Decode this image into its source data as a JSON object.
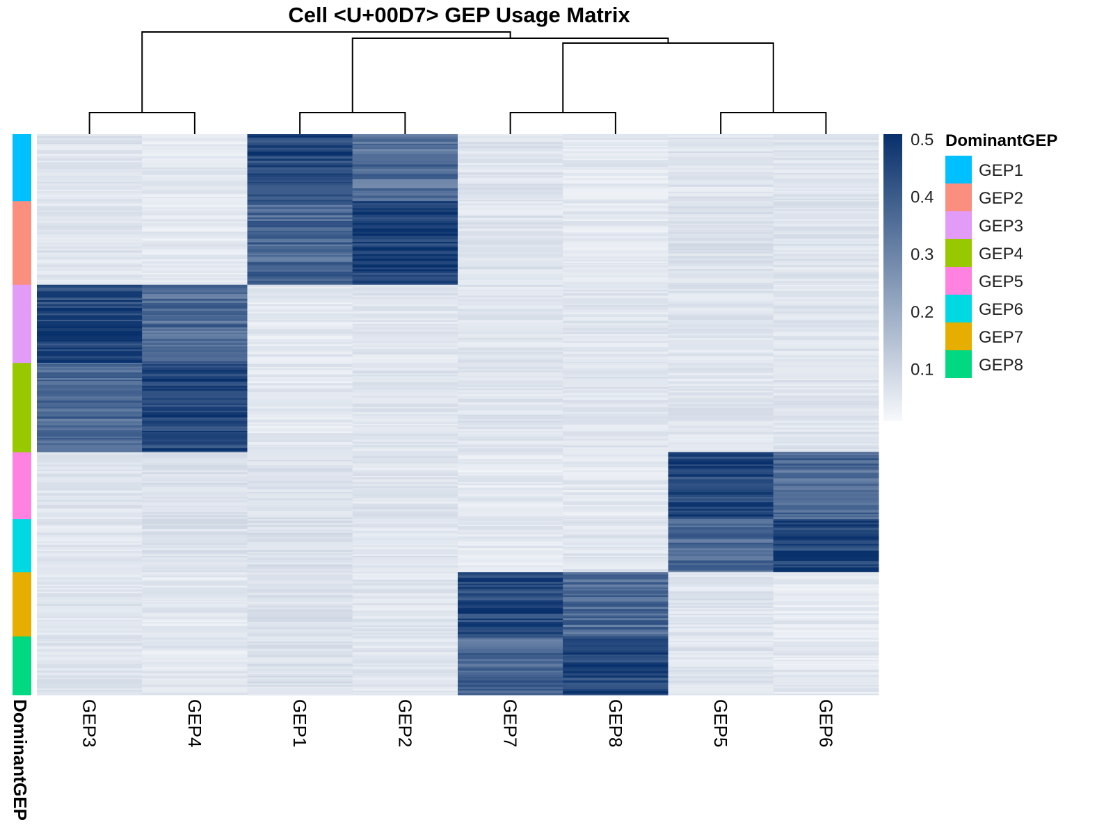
{
  "title": "Cell <U+00D7> GEP Usage Matrix",
  "annotation_label": "DominantGEP",
  "chart_data": {
    "type": "heatmap",
    "title": "Cell <U+00D7> GEP Usage Matrix",
    "columns": [
      "GEP3",
      "GEP4",
      "GEP1",
      "GEP2",
      "GEP7",
      "GEP8",
      "GEP5",
      "GEP6"
    ],
    "row_groups": [
      {
        "name": "GEP1",
        "fraction": 0.12,
        "values": [
          0.05,
          0.04,
          0.44,
          0.34,
          0.05,
          0.04,
          0.05,
          0.05
        ]
      },
      {
        "name": "GEP2",
        "fraction": 0.15,
        "values": [
          0.05,
          0.04,
          0.36,
          0.45,
          0.05,
          0.04,
          0.06,
          0.05
        ]
      },
      {
        "name": "GEP3",
        "fraction": 0.14,
        "values": [
          0.45,
          0.35,
          0.04,
          0.05,
          0.05,
          0.05,
          0.05,
          0.05
        ]
      },
      {
        "name": "GEP4",
        "fraction": 0.16,
        "values": [
          0.36,
          0.45,
          0.04,
          0.05,
          0.05,
          0.05,
          0.05,
          0.05
        ]
      },
      {
        "name": "GEP5",
        "fraction": 0.12,
        "values": [
          0.05,
          0.06,
          0.06,
          0.05,
          0.04,
          0.04,
          0.45,
          0.35
        ]
      },
      {
        "name": "GEP6",
        "fraction": 0.095,
        "values": [
          0.05,
          0.06,
          0.06,
          0.05,
          0.04,
          0.05,
          0.35,
          0.46
        ]
      },
      {
        "name": "GEP7",
        "fraction": 0.115,
        "values": [
          0.05,
          0.04,
          0.06,
          0.05,
          0.45,
          0.36,
          0.05,
          0.04
        ]
      },
      {
        "name": "GEP8",
        "fraction": 0.105,
        "values": [
          0.05,
          0.04,
          0.06,
          0.05,
          0.36,
          0.45,
          0.05,
          0.04
        ]
      }
    ],
    "color_scale": {
      "min": 0.0,
      "max": 0.5,
      "low_color": "#f7f9fc",
      "high_color": "#08306b",
      "ticks": [
        "0.5",
        "0.4",
        "0.3",
        "0.2",
        "0.1"
      ]
    },
    "column_dendrogram": true,
    "legend_position": "right"
  },
  "legend": {
    "title": "DominantGEP",
    "items": [
      {
        "label": "GEP1",
        "color": "#00c0ff"
      },
      {
        "label": "GEP2",
        "color": "#fa8f80"
      },
      {
        "label": "GEP3",
        "color": "#e39bf8"
      },
      {
        "label": "GEP4",
        "color": "#97c800"
      },
      {
        "label": "GEP5",
        "color": "#ff81e0"
      },
      {
        "label": "GEP6",
        "color": "#00d9e2"
      },
      {
        "label": "GEP7",
        "color": "#e6af00"
      },
      {
        "label": "GEP8",
        "color": "#00d981"
      }
    ]
  }
}
